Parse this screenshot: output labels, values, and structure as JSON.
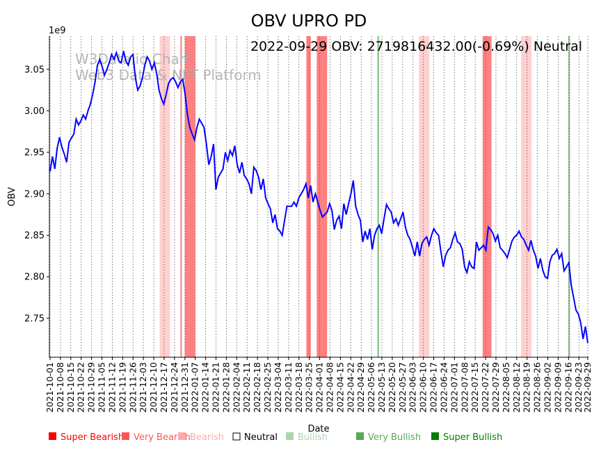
{
  "chart_data": {
    "type": "line",
    "title": "OBV UPRO PD",
    "annotation": "2022-09-29 OBV: 2719816432.00(-0.69%) Neutral",
    "watermark": [
      "W3Data.io Chart",
      "Web3 Data & NFT Platform"
    ],
    "xlabel": "Date",
    "ylabel": "OBV",
    "y_scale_label": "1e9",
    "start_date": "2021-10-01",
    "end_date": "2022-09-29",
    "ylim": [
      2.703,
      3.09
    ],
    "yticks": [
      "2.75",
      "2.80",
      "2.85",
      "2.90",
      "2.95",
      "3.00",
      "3.05"
    ],
    "xticks": [
      "2021-10-01",
      "2021-10-08",
      "2021-10-15",
      "2021-10-22",
      "2021-10-29",
      "2021-11-05",
      "2021-11-12",
      "2021-11-19",
      "2021-11-26",
      "2021-12-03",
      "2021-12-10",
      "2021-12-17",
      "2021-12-24",
      "2021-12-31",
      "2022-01-07",
      "2022-01-14",
      "2022-01-21",
      "2022-01-28",
      "2022-02-04",
      "2022-02-11",
      "2022-02-18",
      "2022-02-25",
      "2022-03-04",
      "2022-03-11",
      "2022-03-18",
      "2022-03-25",
      "2022-04-01",
      "2022-04-08",
      "2022-04-15",
      "2022-04-22",
      "2022-04-29",
      "2022-05-06",
      "2022-05-13",
      "2022-05-20",
      "2022-05-27",
      "2022-06-03",
      "2022-06-10",
      "2022-06-17",
      "2022-06-24",
      "2022-07-01",
      "2022-07-08",
      "2022-07-15",
      "2022-07-22",
      "2022-07-29",
      "2022-08-05",
      "2022-08-12",
      "2022-08-19",
      "2022-08-26",
      "2022-09-02",
      "2022-09-09",
      "2022-09-16",
      "2022-09-23",
      "2022-09-29"
    ],
    "series": [
      {
        "name": "OBV",
        "color": "#0000ff",
        "values": [
          2.927,
          2.945,
          2.93,
          2.955,
          2.968,
          2.956,
          2.948,
          2.938,
          2.962,
          2.967,
          2.972,
          2.99,
          2.983,
          2.988,
          2.995,
          2.99,
          3.0,
          3.008,
          3.02,
          3.035,
          3.055,
          3.062,
          3.053,
          3.043,
          3.05,
          3.058,
          3.068,
          3.062,
          3.07,
          3.06,
          3.058,
          3.072,
          3.06,
          3.055,
          3.065,
          3.068,
          3.04,
          3.025,
          3.03,
          3.04,
          3.055,
          3.065,
          3.06,
          3.05,
          3.058,
          3.045,
          3.025,
          3.015,
          3.008,
          3.02,
          3.033,
          3.038,
          3.04,
          3.035,
          3.028,
          3.035,
          3.038,
          3.02,
          2.995,
          2.98,
          2.972,
          2.965,
          2.98,
          2.99,
          2.985,
          2.98,
          2.96,
          2.935,
          2.945,
          2.96,
          2.905,
          2.92,
          2.925,
          2.93,
          2.95,
          2.94,
          2.952,
          2.946,
          2.958,
          2.935,
          2.925,
          2.938,
          2.922,
          2.918,
          2.912,
          2.9,
          2.932,
          2.928,
          2.92,
          2.905,
          2.918,
          2.895,
          2.888,
          2.882,
          2.865,
          2.875,
          2.858,
          2.855,
          2.85,
          2.868,
          2.885,
          2.885,
          2.885,
          2.89,
          2.885,
          2.895,
          2.9,
          2.905,
          2.912,
          2.895,
          2.91,
          2.89,
          2.9,
          2.89,
          2.88,
          2.872,
          2.875,
          2.878,
          2.888,
          2.88,
          2.857,
          2.868,
          2.873,
          2.858,
          2.888,
          2.875,
          2.888,
          2.9,
          2.916,
          2.885,
          2.875,
          2.868,
          2.842,
          2.855,
          2.845,
          2.858,
          2.833,
          2.85,
          2.858,
          2.862,
          2.852,
          2.87,
          2.887,
          2.882,
          2.878,
          2.865,
          2.87,
          2.862,
          2.87,
          2.878,
          2.86,
          2.85,
          2.845,
          2.835,
          2.825,
          2.842,
          2.825,
          2.84,
          2.845,
          2.848,
          2.838,
          2.85,
          2.858,
          2.853,
          2.85,
          2.83,
          2.812,
          2.826,
          2.832,
          2.835,
          2.845,
          2.853,
          2.842,
          2.84,
          2.833,
          2.812,
          2.805,
          2.818,
          2.812,
          2.81,
          2.842,
          2.832,
          2.835,
          2.838,
          2.832,
          2.86,
          2.857,
          2.852,
          2.843,
          2.85,
          2.835,
          2.832,
          2.828,
          2.823,
          2.833,
          2.843,
          2.848,
          2.85,
          2.855,
          2.848,
          2.845,
          2.838,
          2.832,
          2.844,
          2.832,
          2.825,
          2.81,
          2.822,
          2.808,
          2.8,
          2.798,
          2.818,
          2.826,
          2.828,
          2.833,
          2.822,
          2.828,
          2.807,
          2.812,
          2.817,
          2.79,
          2.775,
          2.76,
          2.755,
          2.745,
          2.725,
          2.74,
          2.72
        ]
      }
    ],
    "bands": [
      {
        "start": "2021-12-14",
        "end": "2021-12-21",
        "signal": "Bearish"
      },
      {
        "start": "2021-12-28",
        "end": "2021-12-29",
        "signal": "Very Bearish"
      },
      {
        "start": "2021-12-31",
        "end": "2022-01-07",
        "signal": "Very Bearish"
      },
      {
        "start": "2022-03-23",
        "end": "2022-03-26",
        "signal": "Very Bearish"
      },
      {
        "start": "2022-03-30",
        "end": "2022-04-06",
        "signal": "Very Bearish"
      },
      {
        "start": "2022-05-10",
        "end": "2022-05-11",
        "signal": "Very Bullish"
      },
      {
        "start": "2022-06-07",
        "end": "2022-06-14",
        "signal": "Bearish"
      },
      {
        "start": "2022-07-20",
        "end": "2022-07-26",
        "signal": "Very Bearish"
      },
      {
        "start": "2022-08-15",
        "end": "2022-08-22",
        "signal": "Bearish"
      },
      {
        "start": "2022-09-16",
        "end": "2022-09-17",
        "signal": "Very Bullish"
      }
    ],
    "legend": [
      {
        "label": "Super Bearish",
        "color": "#ff0000"
      },
      {
        "label": "Very Bearish",
        "color": "#ff5555"
      },
      {
        "label": "Bearish",
        "color": "#ffaaaa"
      },
      {
        "label": "Neutral",
        "color": "#000000"
      },
      {
        "label": "Bullish",
        "color": "#aad4aa"
      },
      {
        "label": "Very Bullish",
        "color": "#55aa55"
      },
      {
        "label": "Super Bullish",
        "color": "#008000"
      }
    ]
  }
}
